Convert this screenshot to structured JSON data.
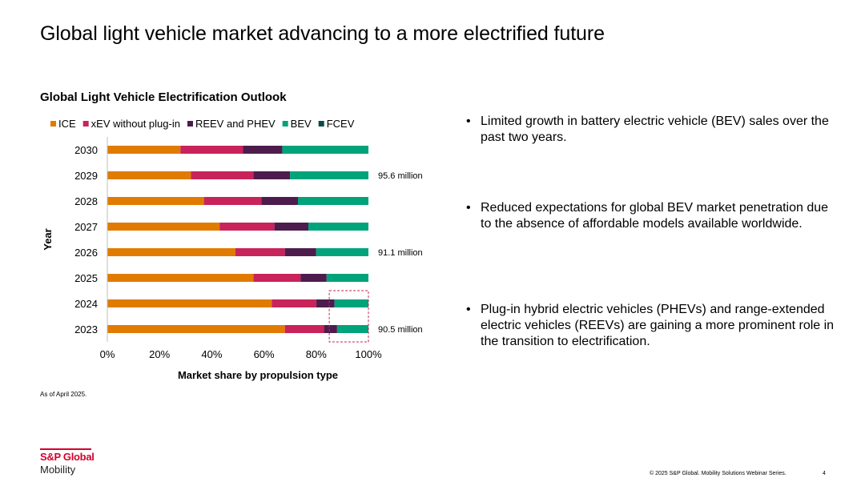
{
  "slide": {
    "title": "Global light vehicle market advancing to a more electrified future",
    "footnote": "As of April 2025.",
    "copyright": "© 2025 S&P Global. Mobility Solutions Webinar Series.",
    "page_number": "4"
  },
  "logo": {
    "brand": "S&P Global",
    "sub": "Mobility"
  },
  "bullets": [
    "Limited growth in battery electric vehicle (BEV) sales over the past two years.",
    "Reduced expectations for global BEV market penetration due to the absence of affordable models available worldwide.",
    "Plug-in hybrid electric vehicles (PHEVs) and range-extended electric vehicles (REEVs) are gaining a more prominent role in the transition to electrification."
  ],
  "bullet_marker": "•",
  "chart_data": {
    "type": "bar",
    "orientation": "horizontal",
    "stacked": true,
    "title": "Global Light Vehicle Electrification Outlook",
    "xlabel": "Market share by propulsion type",
    "ylabel": "Year",
    "xlim": [
      0,
      100
    ],
    "x_ticks": [
      "0%",
      "20%",
      "40%",
      "60%",
      "80%",
      "100%"
    ],
    "legend_position": "top",
    "grid": false,
    "categories": [
      "2030",
      "2029",
      "2028",
      "2027",
      "2026",
      "2025",
      "2024",
      "2023"
    ],
    "series": [
      {
        "name": "ICE",
        "color": "#e07b00",
        "values": [
          28,
          32,
          37,
          43,
          49,
          56,
          63,
          68
        ]
      },
      {
        "name": "xEV without plug-in",
        "color": "#c8235a",
        "values": [
          24,
          24,
          22,
          21,
          19,
          18,
          17,
          15
        ]
      },
      {
        "name": "REEV and PHEV",
        "color": "#4d1c4d",
        "values": [
          15,
          14,
          14,
          13,
          12,
          10,
          7,
          5
        ]
      },
      {
        "name": "BEV",
        "color": "#00a37a",
        "values": [
          33,
          30,
          27,
          23,
          20,
          16,
          13,
          12
        ]
      },
      {
        "name": "FCEV",
        "color": "#0b4a4a",
        "values": [
          0,
          0,
          0,
          0,
          0,
          0,
          0,
          0
        ]
      }
    ],
    "annotations": [
      {
        "category": "2029",
        "text": "95.6 million"
      },
      {
        "category": "2026",
        "text": "91.1 million"
      },
      {
        "category": "2023",
        "text": "90.5 million"
      }
    ],
    "highlight": {
      "categories": [
        "2024",
        "2023"
      ],
      "range": [
        85,
        100
      ],
      "color": "#c8235a",
      "style": "dashed"
    }
  }
}
